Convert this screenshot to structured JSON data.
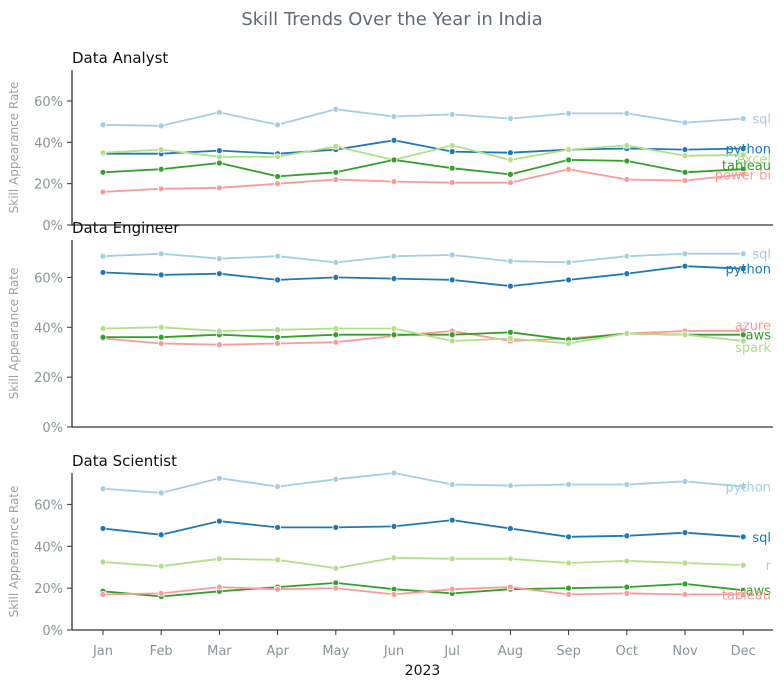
{
  "figure_title": "Skill Trends Over the Year in India",
  "chart_data": [
    {
      "type": "line",
      "title": "Data Analyst",
      "ylabel": "Skill Appearance Rate",
      "xlabel": "",
      "ylim": [
        0,
        75
      ],
      "yticks": [
        "0%",
        "20%",
        "40%",
        "60%"
      ],
      "x": [
        "Jan",
        "Feb",
        "Mar",
        "Apr",
        "May",
        "Jun",
        "Jul",
        "Aug",
        "Sep",
        "Oct",
        "Nov",
        "Dec"
      ],
      "series": [
        {
          "name": "sql",
          "color": "#a6cee3",
          "values": [
            48.5,
            48,
            54.5,
            48.5,
            56,
            52.5,
            53.5,
            51.5,
            54,
            54,
            49.5,
            51.5
          ]
        },
        {
          "name": "python",
          "color": "#1f78b4",
          "values": [
            34.5,
            34.5,
            36,
            34.5,
            36.5,
            41,
            35.5,
            35,
            36.5,
            37,
            36.5,
            37
          ]
        },
        {
          "name": "excel",
          "color": "#b2df8a",
          "values": [
            35,
            36.5,
            33,
            33,
            38,
            31.5,
            38.5,
            31.5,
            36.5,
            38.5,
            33.5,
            34
          ]
        },
        {
          "name": "tableau",
          "color": "#33a02c",
          "values": [
            25.5,
            27,
            30,
            23.5,
            25.5,
            31.5,
            27.5,
            24.5,
            31.5,
            31,
            25.5,
            27
          ]
        },
        {
          "name": "power bi",
          "color": "#fb9a99",
          "values": [
            16,
            17.5,
            18,
            20,
            22,
            21,
            20.5,
            20.5,
            27,
            22,
            21.5,
            24.5
          ]
        }
      ]
    },
    {
      "type": "line",
      "title": "Data Engineer",
      "ylabel": "Skill Appearance Rate",
      "xlabel": "",
      "ylim": [
        0,
        75
      ],
      "yticks": [
        "0%",
        "20%",
        "40%",
        "60%"
      ],
      "x": [
        "Jan",
        "Feb",
        "Mar",
        "Apr",
        "May",
        "Jun",
        "Jul",
        "Aug",
        "Sep",
        "Oct",
        "Nov",
        "Dec"
      ],
      "series": [
        {
          "name": "sql",
          "color": "#a6cee3",
          "values": [
            68.5,
            69.5,
            67.5,
            68.5,
            66,
            68.5,
            69,
            66.5,
            66,
            68.5,
            69.5,
            69.5
          ]
        },
        {
          "name": "python",
          "color": "#1f78b4",
          "values": [
            62,
            61,
            61.5,
            59,
            60,
            59.5,
            59,
            56.5,
            59,
            61.5,
            64.5,
            63.5
          ]
        },
        {
          "name": "azure",
          "color": "#fb9a99",
          "values": [
            35.5,
            33.5,
            33,
            33.5,
            34,
            36.5,
            38.5,
            34.5,
            35.5,
            37.5,
            38.5,
            38.5
          ]
        },
        {
          "name": "aws",
          "color": "#33a02c",
          "values": [
            36,
            36,
            37,
            36,
            37,
            37,
            37,
            38,
            35,
            37.5,
            37,
            37
          ]
        },
        {
          "name": "spark",
          "color": "#b2df8a",
          "values": [
            39.5,
            40,
            38.5,
            39,
            39.5,
            39.5,
            34.5,
            35.5,
            33.5,
            37.5,
            37,
            34.5
          ]
        }
      ]
    },
    {
      "type": "line",
      "title": "Data Scientist",
      "ylabel": "Skill Appearance Rate",
      "xlabel": "2023",
      "ylim": [
        0,
        75
      ],
      "yticks": [
        "0%",
        "20%",
        "40%",
        "60%"
      ],
      "x": [
        "Jan",
        "Feb",
        "Mar",
        "Apr",
        "May",
        "Jun",
        "Jul",
        "Aug",
        "Sep",
        "Oct",
        "Nov",
        "Dec"
      ],
      "series": [
        {
          "name": "python",
          "color": "#a6cee3",
          "values": [
            67.5,
            65.5,
            72.5,
            68.5,
            72,
            75,
            69.5,
            69,
            69.5,
            69.5,
            71,
            68.5
          ]
        },
        {
          "name": "sql",
          "color": "#1f78b4",
          "values": [
            48.5,
            45.5,
            52,
            49,
            49,
            49.5,
            52.5,
            48.5,
            44.5,
            45,
            46.5,
            44.5
          ]
        },
        {
          "name": "r",
          "color": "#b2df8a",
          "values": [
            32.5,
            30.5,
            34,
            33.5,
            29.5,
            34.5,
            34,
            34,
            32,
            33,
            32,
            31
          ]
        },
        {
          "name": "aws",
          "color": "#33a02c",
          "values": [
            18.5,
            16,
            18.5,
            20.5,
            22.5,
            19.5,
            17.5,
            19.5,
            20,
            20.5,
            22,
            19
          ]
        },
        {
          "name": "tableau",
          "color": "#fb9a99",
          "values": [
            17,
            17.5,
            20.5,
            19.5,
            20,
            17,
            19.5,
            20.5,
            17,
            17.5,
            17,
            17
          ]
        }
      ]
    }
  ]
}
